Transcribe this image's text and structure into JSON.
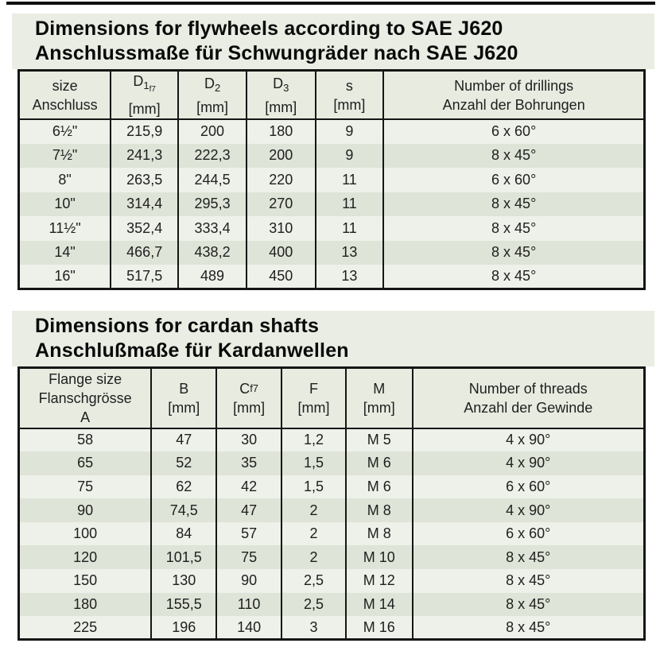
{
  "colors": {
    "page_bg": "#ffffff",
    "panel_bg": "#e9ede3",
    "header_bg": "#e7ebe0",
    "row_light": "#eef1e9",
    "row_dark": "#dee4d7",
    "border": "#161616",
    "text": "#202020",
    "title_text": "#0a0a0a",
    "top_rule": "#101010"
  },
  "sections": [
    {
      "title_en": "Dimensions for flywheels according to SAE J620",
      "title_de": "Anschlussmaße für Schwungräder nach SAE J620"
    },
    {
      "title_en": "Dimensions for cardan shafts",
      "title_de": "Anschlußmaße für Kardanwellen"
    }
  ],
  "tables": [
    {
      "name": "flywheel-dimensions",
      "columns": [
        {
          "width": "14.7%",
          "lines": [
            {
              "text": "size"
            },
            {
              "text": "Anschluss"
            }
          ]
        },
        {
          "width": "10.8%",
          "lines": [
            {
              "base": "D",
              "sub": "1",
              "subsub": "f7"
            },
            {
              "text": "[mm]"
            }
          ]
        },
        {
          "width": "10.9%",
          "lines": [
            {
              "base": "D",
              "sub": "2"
            },
            {
              "text": "[mm]"
            }
          ]
        },
        {
          "width": "11.0%",
          "lines": [
            {
              "base": "D",
              "sub": "3"
            },
            {
              "text": "[mm]"
            }
          ]
        },
        {
          "width": "10.9%",
          "lines": [
            {
              "text": "s"
            },
            {
              "text": "[mm]"
            }
          ]
        },
        {
          "width": "41.7%",
          "lines": [
            {
              "text": "Number of drillings"
            },
            {
              "text": "Anzahl der Bohrungen"
            }
          ]
        }
      ],
      "rows": [
        [
          "6½\"",
          "215,9",
          "200",
          "180",
          "9",
          "6 x 60°"
        ],
        [
          "7½\"",
          "241,3",
          "222,3",
          "200",
          "9",
          "8 x 45°"
        ],
        [
          "8\"",
          "263,5",
          "244,5",
          "220",
          "11",
          "6 x 60°"
        ],
        [
          "10\"",
          "314,4",
          "295,3",
          "270",
          "11",
          "8 x 45°"
        ],
        [
          "11½\"",
          "352,4",
          "333,4",
          "310",
          "11",
          "8 x 45°"
        ],
        [
          "14\"",
          "466,7",
          "438,2",
          "400",
          "13",
          "8 x 45°"
        ],
        [
          "16\"",
          "517,5",
          "489",
          "450",
          "13",
          "8 x 45°"
        ]
      ]
    },
    {
      "name": "cardan-shaft-dimensions",
      "columns": [
        {
          "width": "21.2%",
          "lines": [
            {
              "text": "Flange size"
            },
            {
              "text": "Flanschgrösse"
            },
            {
              "text": "A"
            }
          ]
        },
        {
          "width": "10.4%",
          "unit_bottom": true,
          "lines": [
            {
              "text": "B"
            },
            {
              "text": "[mm]"
            }
          ]
        },
        {
          "width": "10.4%",
          "unit_bottom": true,
          "lines": [
            {
              "base": "C",
              "sub": "f7"
            },
            {
              "text": "[mm]"
            }
          ]
        },
        {
          "width": "10.3%",
          "unit_bottom": true,
          "lines": [
            {
              "text": "F"
            },
            {
              "text": "[mm]"
            }
          ]
        },
        {
          "width": "10.6%",
          "unit_bottom": true,
          "lines": [
            {
              "text": "M"
            },
            {
              "text": "[mm]"
            }
          ]
        },
        {
          "width": "37.1%",
          "lines": [
            {
              "text": "Number of threads"
            },
            {
              "text": "Anzahl der Gewinde"
            }
          ]
        }
      ],
      "rows": [
        [
          "58",
          "47",
          "30",
          "1,2",
          "M 5",
          "4 x 90°"
        ],
        [
          "65",
          "52",
          "35",
          "1,5",
          "M 6",
          "4 x 90°"
        ],
        [
          "75",
          "62",
          "42",
          "1,5",
          "M 6",
          "6 x 60°"
        ],
        [
          "90",
          "74,5",
          "47",
          "2",
          "M 8",
          "4 x 90°"
        ],
        [
          "100",
          "84",
          "57",
          "2",
          "M 8",
          "6 x 60°"
        ],
        [
          "120",
          "101,5",
          "75",
          "2",
          "M 10",
          "8 x 45°"
        ],
        [
          "150",
          "130",
          "90",
          "2,5",
          "M 12",
          "8 x 45°"
        ],
        [
          "180",
          "155,5",
          "110",
          "2,5",
          "M 14",
          "8 x 45°"
        ],
        [
          "225",
          "196",
          "140",
          "3",
          "M 16",
          "8 x 45°"
        ]
      ]
    }
  ]
}
